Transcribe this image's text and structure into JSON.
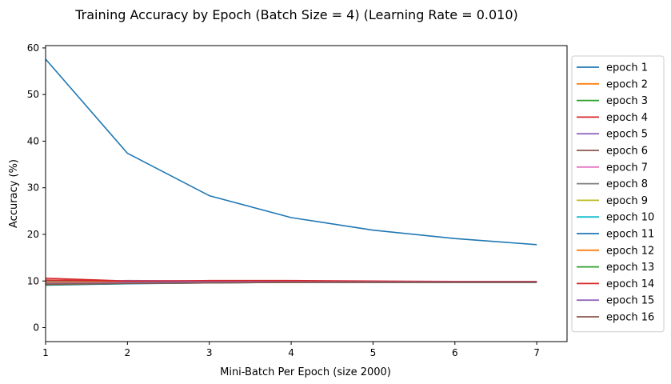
{
  "chart_data": {
    "type": "line",
    "title": "Training Accuracy by Epoch (Batch Size = 4) (Learning Rate = 0.010)",
    "xlabel": "Mini-Batch Per Epoch (size 2000)",
    "ylabel": "Accuracy (%)",
    "x": [
      1,
      2,
      3,
      4,
      5,
      6,
      7
    ],
    "xlim": [
      1,
      7.37
    ],
    "ylim": [
      -3,
      60.5
    ],
    "xticks": [
      "1",
      "2",
      "3",
      "4",
      "5",
      "6",
      "7"
    ],
    "yticks": [
      "0",
      "10",
      "20",
      "30",
      "40",
      "50",
      "60"
    ],
    "grid": false,
    "legend_position": "outside-right",
    "series": [
      {
        "name": "epoch 1",
        "color": "#1f77b4",
        "values": [
          57.6,
          37.4,
          28.3,
          23.6,
          20.9,
          19.1,
          17.8
        ]
      },
      {
        "name": "epoch 2",
        "color": "#ff7f0e",
        "values": [
          9.8,
          9.9,
          10.0,
          9.9,
          9.8,
          9.8,
          9.8
        ]
      },
      {
        "name": "epoch 3",
        "color": "#2ca02c",
        "values": [
          9.5,
          9.7,
          9.8,
          9.9,
          9.9,
          9.8,
          9.8
        ]
      },
      {
        "name": "epoch 4",
        "color": "#d62728",
        "values": [
          10.6,
          10.0,
          10.1,
          10.1,
          10.0,
          9.9,
          9.9
        ]
      },
      {
        "name": "epoch 5",
        "color": "#9467bd",
        "values": [
          9.7,
          10.1,
          10.0,
          9.9,
          9.8,
          9.8,
          9.8
        ]
      },
      {
        "name": "epoch 6",
        "color": "#8c564b",
        "values": [
          9.3,
          9.7,
          9.9,
          9.9,
          9.8,
          9.8,
          9.8
        ]
      },
      {
        "name": "epoch 7",
        "color": "#e377c2",
        "values": [
          10.0,
          10.0,
          9.9,
          9.9,
          9.8,
          9.8,
          9.8
        ]
      },
      {
        "name": "epoch 8",
        "color": "#7f7f7f",
        "values": [
          9.9,
          9.9,
          9.9,
          9.8,
          9.8,
          9.8,
          9.8
        ]
      },
      {
        "name": "epoch 9",
        "color": "#bcbd22",
        "values": [
          9.6,
          9.8,
          9.8,
          9.8,
          9.8,
          9.8,
          9.8
        ]
      },
      {
        "name": "epoch 10",
        "color": "#17becf",
        "values": [
          9.4,
          9.6,
          9.7,
          9.8,
          9.8,
          9.8,
          9.8
        ]
      },
      {
        "name": "epoch 11",
        "color": "#1f77b4",
        "values": [
          9.1,
          9.4,
          9.6,
          9.7,
          9.7,
          9.7,
          9.7
        ]
      },
      {
        "name": "epoch 12",
        "color": "#ff7f0e",
        "values": [
          9.7,
          9.8,
          9.8,
          9.8,
          9.8,
          9.8,
          9.8
        ]
      },
      {
        "name": "epoch 13",
        "color": "#2ca02c",
        "values": [
          9.2,
          9.5,
          9.6,
          9.7,
          9.7,
          9.7,
          9.7
        ]
      },
      {
        "name": "epoch 14",
        "color": "#d62728",
        "values": [
          10.2,
          10.0,
          10.0,
          10.0,
          9.9,
          9.9,
          9.9
        ]
      },
      {
        "name": "epoch 15",
        "color": "#9467bd",
        "values": [
          9.5,
          9.7,
          9.8,
          9.8,
          9.8,
          9.8,
          9.8
        ]
      },
      {
        "name": "epoch 16",
        "color": "#8c564b",
        "values": [
          9.3,
          9.5,
          9.6,
          9.7,
          9.7,
          9.7,
          9.7
        ]
      }
    ]
  }
}
